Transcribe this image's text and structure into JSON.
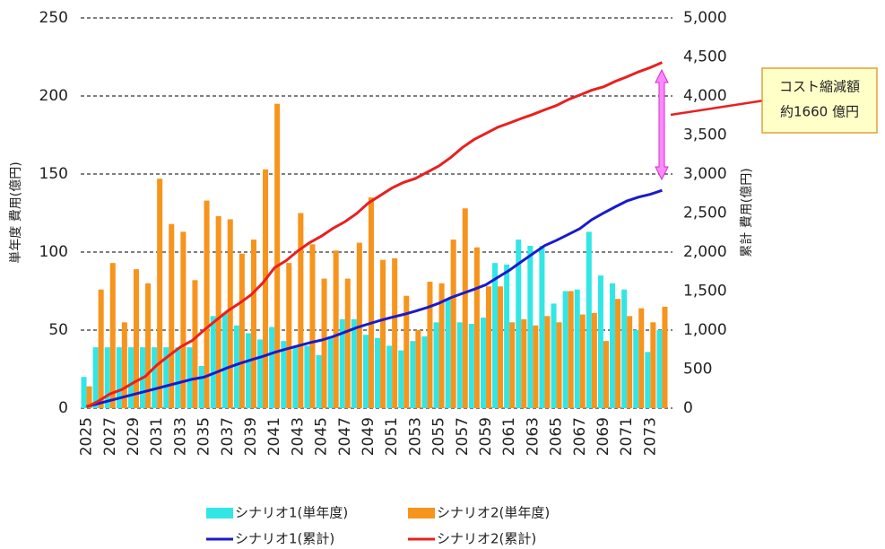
{
  "chart_data": {
    "type": "bar_line",
    "categories": [
      "2025",
      null,
      "2027",
      null,
      "2029",
      null,
      "2031",
      null,
      "2033",
      null,
      "2035",
      null,
      "2037",
      null,
      "2039",
      null,
      "2041",
      null,
      "2043",
      null,
      "2045",
      null,
      "2047",
      null,
      "2049",
      null,
      "2051",
      null,
      "2053",
      null,
      "2055",
      null,
      "2057",
      null,
      "2059",
      null,
      "2061",
      null,
      "2063",
      null,
      "2065",
      null,
      "2067",
      null,
      "2069",
      null,
      "2071",
      null,
      "2073",
      null
    ],
    "series": [
      {
        "name": "シナリオ1(単年度)",
        "color": "#33e6e6",
        "kind": "bar",
        "values": [
          20,
          39,
          39,
          39,
          39,
          39,
          39,
          39,
          39,
          39,
          27,
          59,
          61,
          53,
          48,
          44,
          52,
          43,
          40,
          40,
          34,
          46,
          57,
          57,
          47,
          45,
          40,
          37,
          43,
          46,
          55,
          70,
          55,
          54,
          58,
          93,
          92,
          108,
          104,
          104,
          67,
          75,
          76,
          113,
          85,
          80,
          76,
          50,
          36,
          50
        ]
      },
      {
        "name": "シナリオ2(単年度)",
        "color": "#f7941d",
        "kind": "bar",
        "values": [
          14,
          76,
          93,
          55,
          89,
          80,
          147,
          118,
          113,
          82,
          133,
          123,
          121,
          99,
          108,
          153,
          195,
          93,
          125,
          105,
          83,
          101,
          83,
          106,
          135,
          95,
          96,
          72,
          50,
          81,
          80,
          108,
          128,
          103,
          78,
          78,
          55,
          57,
          53,
          59,
          55,
          75,
          60,
          61,
          43,
          70,
          59,
          64,
          55,
          65
        ]
      },
      {
        "name": "シナリオ1(累計)",
        "color": "#1a1acc",
        "kind": "line",
        "axis": "y2",
        "values": [
          20,
          59,
          98,
          137,
          176,
          215,
          254,
          293,
          332,
          371,
          398,
          457,
          518,
          571,
          619,
          663,
          715,
          758,
          798,
          838,
          872,
          918,
          975,
          1032,
          1079,
          1124,
          1164,
          1201,
          1244,
          1290,
          1345,
          1415,
          1470,
          1524,
          1582,
          1675,
          1767,
          1875,
          1979,
          2083,
          2150,
          2225,
          2301,
          2414,
          2499,
          2579,
          2655,
          2705,
          2741,
          2791
        ]
      },
      {
        "name": "シナリオ2(累計)",
        "color": "#e82020",
        "kind": "line",
        "axis": "y2",
        "values": [
          14,
          90,
          183,
          238,
          327,
          407,
          554,
          672,
          785,
          867,
          1000,
          1123,
          1244,
          1343,
          1451,
          1604,
          1799,
          1892,
          2017,
          2122,
          2205,
          2306,
          2389,
          2495,
          2630,
          2725,
          2821,
          2893,
          2943,
          3024,
          3104,
          3212,
          3340,
          3443,
          3521,
          3599,
          3654,
          3711,
          3764,
          3823,
          3878,
          3953,
          4013,
          4074,
          4117,
          4187,
          4246,
          4310,
          4365,
          4430
        ]
      }
    ],
    "ylabel": "単年度 費用(億円)",
    "y2label": "累計 費用(億円)",
    "ylim": [
      0,
      250
    ],
    "yticks": [
      0,
      50,
      100,
      150,
      200,
      250
    ],
    "y2lim": [
      0,
      5000
    ],
    "y2ticks": [
      0,
      500,
      {
        "value": 1000,
        "label": "1,000"
      },
      {
        "value": 1500,
        "label": "1,500"
      },
      {
        "value": 2000,
        "label": "2,000"
      },
      {
        "value": 2500,
        "label": "2,500"
      },
      {
        "value": 3000,
        "label": "3,000"
      },
      {
        "value": 3500,
        "label": "3,500"
      },
      {
        "value": 4000,
        "label": "4,000"
      },
      {
        "value": 4500,
        "label": "4,500"
      },
      {
        "value": 5000,
        "label": "5,000"
      }
    ],
    "grid": true,
    "annotation": [
      "コスト縮減額",
      "約1660 億円"
    ]
  }
}
